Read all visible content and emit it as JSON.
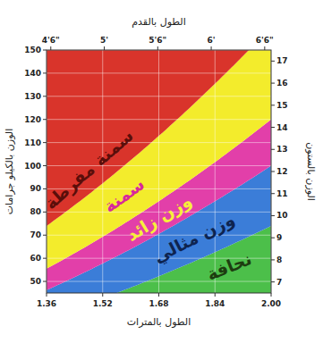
{
  "chart_data": {
    "type": "area",
    "xlabel": "الطول بالمترات",
    "x2label": "الطول بالقدم",
    "ylabel": "الوزن بالكيلو جرامات",
    "y2label": "الوزن بالستون",
    "xlim": [
      1.36,
      2.0
    ],
    "xticks": [
      1.36,
      1.52,
      1.68,
      1.84,
      {
        "value": 2.0,
        "label": "2.00"
      }
    ],
    "x2lim": [
      4.46,
      6.56
    ],
    "x2ticks": [
      {
        "value": 4.5,
        "label": "4'6\""
      },
      {
        "value": 5,
        "label": "5'"
      },
      {
        "value": 5.5,
        "label": "5'6\""
      },
      {
        "value": 6,
        "label": "6'"
      },
      {
        "value": 6.5,
        "label": "6'6\""
      }
    ],
    "ylim": [
      45,
      150
    ],
    "yticks": [
      50,
      60,
      70,
      80,
      90,
      100,
      110,
      120,
      130,
      140,
      150
    ],
    "y2lim": [
      6.5,
      17.5
    ],
    "y2ticks": [
      7,
      8,
      9,
      10,
      11,
      12,
      13,
      14,
      15,
      16,
      17
    ],
    "grid": true,
    "bands": [
      {
        "name": "نحافة",
        "color": "#4cbf4a",
        "bmi_min": 0
      },
      {
        "name": "وزن مثالي",
        "color": "#3b7dd8",
        "bmi_min": 18.5
      },
      {
        "name": "وزن زائد",
        "color": "#e23fa9",
        "bmi_min": 25
      },
      {
        "name": "سمنة",
        "color": "#f3ec2c",
        "bmi_min": 30
      },
      {
        "name": "سمنة مفرطة",
        "color": "#d9342b",
        "bmi_min": 40
      }
    ]
  }
}
